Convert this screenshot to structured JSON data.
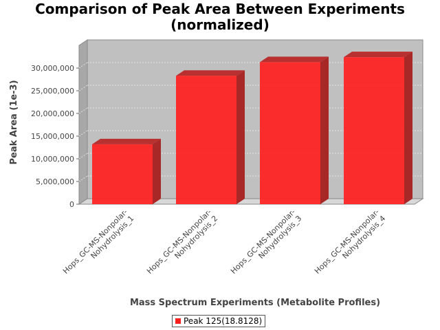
{
  "chart_data": {
    "type": "bar",
    "title": "Comparison of Peak Area Between Experiments",
    "subtitle": "(normalized)",
    "xlabel": "Mass Spectrum Experiments (Metabolite Profiles)",
    "ylabel": "Peak Area (1e-3)",
    "categories": [
      [
        "Hops_GC-MS-Nonpolar-",
        "Nohydrolysis_1"
      ],
      [
        "Hops_GC-MS-Nonpolar-",
        "Nohydrolysis_2"
      ],
      [
        "Hops_GC-MS-Nonpolar-",
        "Nohydrolysis_3"
      ],
      [
        "Hops_GC-MS-Nonpolar-",
        "Nohydrolysis_4"
      ]
    ],
    "series": [
      {
        "name": "Peak 125(18.8128)",
        "color": "#ff2020",
        "values": [
          13200000,
          28300000,
          31300000,
          32400000
        ]
      }
    ],
    "yticks": [
      0,
      5000000,
      10000000,
      15000000,
      20000000,
      25000000,
      30000000
    ],
    "ytick_labels": [
      "0",
      "5,000,000",
      "10,000,000",
      "15,000,000",
      "20,000,000",
      "25,000,000",
      "30,000,000"
    ],
    "ylim": [
      0,
      35000000
    ],
    "grid": true,
    "legend_position": "bottom-center",
    "plot_background": "#c0c0c0"
  }
}
